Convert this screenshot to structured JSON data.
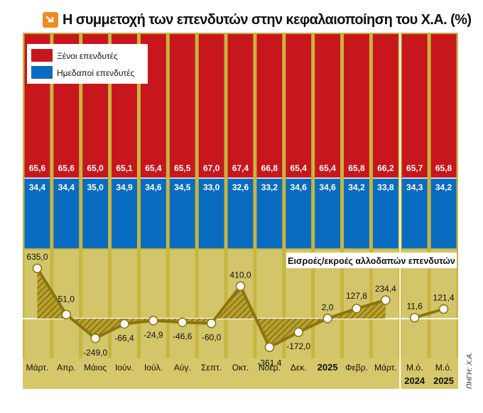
{
  "chart_data": {
    "type": "bar",
    "title": "Η συμμετοχή των επενδυτών στην κεφαλαιοποίηση του Χ.Α. (%)",
    "categories": [
      {
        "label": "Μάρτ.",
        "year": ""
      },
      {
        "label": "Απρ.",
        "year": ""
      },
      {
        "label": "Μάιος",
        "year": ""
      },
      {
        "label": "Ιούν.",
        "year": ""
      },
      {
        "label": "Ιούλ.",
        "year": ""
      },
      {
        "label": "Αύγ.",
        "year": ""
      },
      {
        "label": "Σεπτ.",
        "year": ""
      },
      {
        "label": "Οκτ.",
        "year": ""
      },
      {
        "label": "Νοέμ.",
        "year": ""
      },
      {
        "label": "Δεκ.",
        "year": ""
      },
      {
        "label": "",
        "year": "2025"
      },
      {
        "label": "Φεβρ.",
        "year": ""
      },
      {
        "label": "Μάρτ.",
        "year": ""
      },
      {
        "label": "Μ.ό.",
        "year": "2024"
      },
      {
        "label": "Μ.ό.",
        "year": "2025"
      }
    ],
    "series": [
      {
        "name": "Ξένοι επενδυτές",
        "color": "#c8161d",
        "values": [
          "65,6",
          "65,6",
          "65,0",
          "65,1",
          "65,4",
          "65,5",
          "67,0",
          "67,4",
          "66,8",
          "65,4",
          "65,4",
          "65,8",
          "66,2",
          "65,7",
          "65,8"
        ]
      },
      {
        "name": "Ημεδαποί επενδυτές",
        "color": "#0a6cc0",
        "values": [
          "34,4",
          "34,4",
          "35,0",
          "34,9",
          "34,6",
          "34,5",
          "33,0",
          "32,6",
          "33,2",
          "34,6",
          "34,6",
          "34,2",
          "33,8",
          "34,3",
          "34,2"
        ]
      }
    ],
    "flows": {
      "title": "Εισροές/εκροές αλλοδαπών επενδυτών",
      "values": [
        635.0,
        51.0,
        -249.0,
        -66.4,
        -24.9,
        -46.6,
        -60.0,
        410.0,
        -361.4,
        -172.0,
        2.0,
        127.8,
        234.4,
        11.6,
        121.4
      ],
      "labels": [
        "635,0",
        "51,0",
        "-249,0",
        "-66,4",
        "-24,9",
        "-46,6",
        "-60,0",
        "410,0",
        "-361,4",
        "-172,0",
        "2,0",
        "127,8",
        "234,4",
        "11,6",
        "121,4"
      ]
    }
  },
  "source": "ΠΗΓΗ: Χ.Α."
}
